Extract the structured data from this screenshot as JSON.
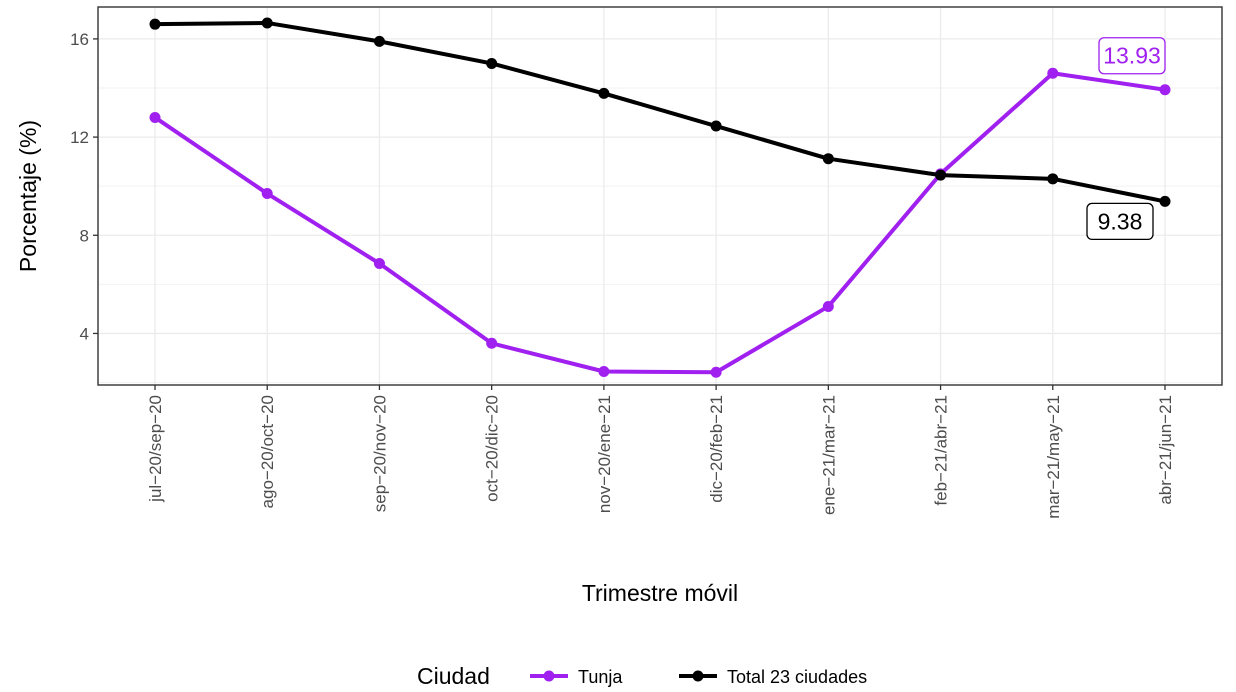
{
  "chart_data": {
    "type": "line",
    "xlabel": "Trimestre móvil",
    "ylabel": "Porcentaje (%)",
    "categories": [
      "jul−20/sep−20",
      "ago−20/oct−20",
      "sep−20/nov−20",
      "oct−20/dic−20",
      "nov−20/ene−21",
      "dic−20/feb−21",
      "ene−21/mar−21",
      "feb−21/abr−21",
      "mar−21/may−21",
      "abr−21/jun−21"
    ],
    "ylim": [
      1.9,
      17.3
    ],
    "yticks": [
      "4",
      "8",
      "12",
      "16"
    ],
    "grid": true,
    "legend": {
      "title": "Ciudad",
      "position": "bottom"
    },
    "series": [
      {
        "name": "Tunja",
        "color": "#a020f0",
        "values": [
          12.8,
          9.7,
          6.85,
          3.6,
          2.45,
          2.42,
          5.1,
          10.5,
          14.6,
          13.93
        ],
        "end_label": "13.93"
      },
      {
        "name": "Total 23 ciudades",
        "color": "#000000",
        "values": [
          16.6,
          16.65,
          15.9,
          15.0,
          13.78,
          12.45,
          11.12,
          10.45,
          10.3,
          9.38
        ],
        "end_label": "9.38"
      }
    ]
  }
}
